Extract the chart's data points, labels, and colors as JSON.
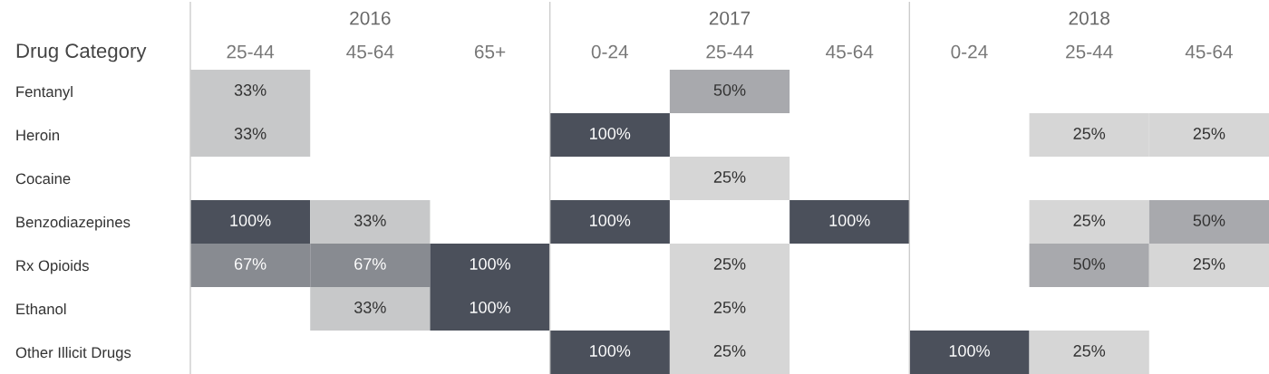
{
  "chart_data": {
    "type": "heatmap",
    "ylabel": "Drug Category",
    "annotations": [
      "2016",
      "2017",
      "2018"
    ],
    "categories": [
      "25-44",
      "45-64",
      "65+",
      "0-24",
      "25-44",
      "45-64",
      "0-24",
      "25-44",
      "45-64"
    ],
    "y_categories": [
      "Fentanyl",
      "Heroin",
      "Cocaine",
      "Benzodiazepines",
      "Rx Opioids",
      "Ethanol",
      "Other Illicit Drugs"
    ],
    "colors": [
      "#d6d6d6",
      "#4b505b"
    ],
    "cells": [
      [
        33,
        null,
        null,
        null,
        50,
        null,
        null,
        null,
        null
      ],
      [
        33,
        null,
        null,
        100,
        null,
        null,
        null,
        25,
        25
      ],
      [
        null,
        null,
        null,
        null,
        25,
        null,
        null,
        null,
        null
      ],
      [
        100,
        33,
        null,
        100,
        null,
        100,
        null,
        25,
        50
      ],
      [
        67,
        67,
        100,
        null,
        25,
        null,
        null,
        50,
        25
      ],
      [
        null,
        33,
        100,
        null,
        25,
        null,
        null,
        null,
        null
      ],
      [
        null,
        null,
        null,
        100,
        25,
        null,
        100,
        25,
        null
      ]
    ],
    "cell_labels": [
      [
        "33%",
        null,
        null,
        null,
        "50%",
        null,
        null,
        null,
        null
      ],
      [
        "33%",
        null,
        null,
        "100%",
        null,
        null,
        null,
        "25%",
        "25%"
      ],
      [
        null,
        null,
        null,
        null,
        "25%",
        null,
        null,
        null,
        null
      ],
      [
        "100%",
        "33%",
        null,
        "100%",
        null,
        "100%",
        null,
        "25%",
        "50%"
      ],
      [
        "67%",
        "67%",
        "100%",
        null,
        "25%",
        null,
        null,
        "50%",
        "25%"
      ],
      [
        null,
        "33%",
        "100%",
        null,
        "25%",
        null,
        null,
        null,
        null
      ],
      [
        null,
        null,
        null,
        "100%",
        "25%",
        null,
        "100%",
        "25%",
        null
      ]
    ]
  }
}
